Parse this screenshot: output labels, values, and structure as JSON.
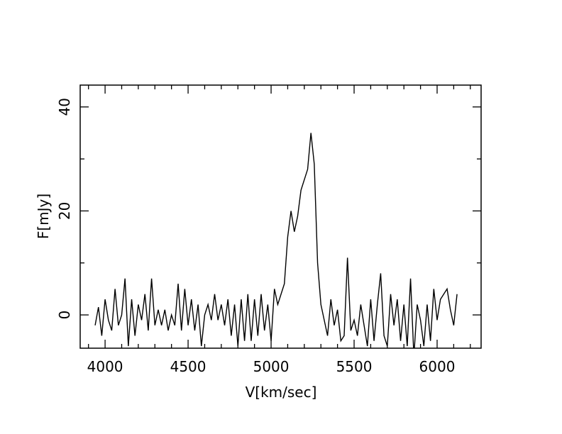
{
  "chart_data": {
    "type": "line",
    "xlabel": "V[km/sec]",
    "ylabel": "F[mJy]",
    "x": [
      3940,
      3960,
      3980,
      4000,
      4020,
      4040,
      4060,
      4080,
      4100,
      4120,
      4140,
      4160,
      4180,
      4200,
      4220,
      4240,
      4260,
      4280,
      4300,
      4320,
      4340,
      4360,
      4380,
      4400,
      4420,
      4440,
      4460,
      4480,
      4500,
      4520,
      4540,
      4560,
      4580,
      4600,
      4620,
      4640,
      4660,
      4680,
      4700,
      4720,
      4740,
      4760,
      4780,
      4800,
      4820,
      4840,
      4860,
      4880,
      4900,
      4920,
      4940,
      4960,
      4980,
      5000,
      5020,
      5040,
      5060,
      5080,
      5100,
      5120,
      5140,
      5160,
      5180,
      5200,
      5220,
      5240,
      5260,
      5280,
      5300,
      5320,
      5340,
      5360,
      5380,
      5400,
      5420,
      5440,
      5460,
      5480,
      5500,
      5520,
      5540,
      5560,
      5580,
      5600,
      5620,
      5640,
      5660,
      5680,
      5700,
      5720,
      5740,
      5760,
      5780,
      5800,
      5820,
      5840,
      5860,
      5880,
      5900,
      5920,
      5940,
      5960,
      5980,
      6000,
      6020,
      6040,
      6060,
      6080,
      6100,
      6120
    ],
    "values": [
      -2,
      1.5,
      -4,
      3,
      -1,
      -3,
      5,
      -2,
      0,
      7,
      -6,
      3,
      -4,
      2,
      -1,
      4,
      -3,
      7,
      -2,
      1,
      -2,
      1,
      -3,
      0,
      -2,
      6,
      -3,
      5,
      -2,
      3,
      -3,
      2,
      -6,
      0,
      2,
      -1,
      4,
      -1,
      2,
      -2,
      3,
      -4,
      2,
      -6,
      3,
      -5,
      4,
      -5,
      3,
      -4,
      4,
      -3,
      2,
      -5,
      5,
      2,
      4,
      6,
      15,
      20,
      16,
      19,
      24,
      26,
      28,
      35,
      29,
      10,
      2,
      -1,
      -4,
      3,
      -2,
      1,
      -5,
      -4,
      11,
      -3,
      -1,
      -4,
      2,
      -2,
      -6,
      3,
      -5,
      2,
      8,
      -4,
      -6,
      4,
      -2,
      3,
      -5,
      2,
      -6,
      7,
      -8,
      2,
      -1,
      -6,
      2,
      -5,
      5,
      -1,
      3,
      4,
      5,
      1,
      -2,
      4
    ],
    "color": "#000000",
    "xlim": [
      3850,
      6265
    ],
    "ylim": [
      -6.4,
      44.2
    ],
    "xticks": [
      4000,
      4500,
      5000,
      5500,
      6000
    ],
    "xminorticks": [
      3900,
      4100,
      4200,
      4300,
      4400,
      4600,
      4700,
      4800,
      4900,
      5100,
      5200,
      5300,
      5400,
      5600,
      5700,
      5800,
      5900,
      6100,
      6200
    ],
    "yticks": [
      0,
      20,
      40
    ],
    "yminorticks": [
      10,
      30
    ]
  }
}
